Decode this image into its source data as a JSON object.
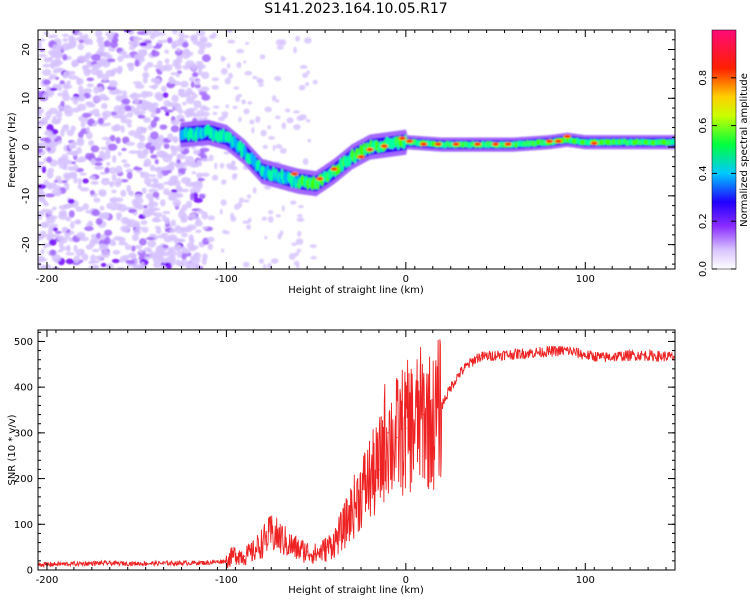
{
  "title": "S141.2023.164.10.05.R17",
  "chart_data": [
    {
      "type": "heatmap",
      "xlabel": "Height of straight line (km)",
      "ylabel": "Frequency (Hz)",
      "xlim": [
        -205,
        150
      ],
      "ylim": [
        -25,
        24
      ],
      "x_ticks": [
        -200,
        -100,
        0,
        100
      ],
      "y_ticks": [
        -20,
        -10,
        0,
        10,
        20
      ],
      "colorbar": {
        "label": "Normalized spectral amplitude",
        "range": [
          0,
          1
        ],
        "ticks": [
          "0.0",
          "0.2",
          "0.4",
          "0.6",
          "0.8"
        ],
        "colors": [
          "#ffffff",
          "#b07cff",
          "#6a00ff",
          "#0000ff",
          "#00ffff",
          "#00ff00",
          "#ffff00",
          "#ff0000",
          "#ff0088"
        ]
      },
      "ridge": {
        "x": [
          -125,
          -110,
          -100,
          -90,
          -80,
          -70,
          -60,
          -50,
          -40,
          -30,
          -20,
          -10,
          0,
          20,
          60,
          80,
          90,
          100,
          150
        ],
        "freq_hz": [
          2.5,
          3,
          2,
          -1,
          -5,
          -6,
          -7,
          -7.5,
          -5,
          -2,
          0,
          0.5,
          1,
          0.5,
          0.5,
          1,
          1.5,
          1,
          1
        ]
      }
    },
    {
      "type": "line",
      "xlabel": "Height of straight line (km)",
      "ylabel": "SNR (10 * v/v)",
      "xlim": [
        -205,
        150
      ],
      "ylim": [
        0,
        525
      ],
      "x_ticks": [
        -200,
        -100,
        0,
        100
      ],
      "y_ticks": [
        0,
        100,
        200,
        300,
        400,
        500
      ],
      "line_color": "#ee2222",
      "series": [
        {
          "x": [
            -205,
            -190,
            -170,
            -150,
            -130,
            -110,
            -100,
            -95,
            -90,
            -85,
            -80,
            -75,
            -70,
            -65,
            -60,
            -55,
            -50,
            -45,
            -40,
            -35,
            -30,
            -25,
            -20,
            -15,
            -12,
            -10,
            -8,
            -5,
            0,
            5,
            10,
            15,
            20,
            25,
            30,
            35,
            40,
            50,
            60,
            70,
            80,
            90,
            100,
            110,
            120,
            130,
            140,
            150
          ],
          "y": [
            12,
            13,
            15,
            14,
            15,
            16,
            20,
            35,
            30,
            40,
            60,
            80,
            70,
            55,
            45,
            40,
            35,
            45,
            60,
            90,
            130,
            170,
            200,
            220,
            280,
            300,
            280,
            290,
            310,
            320,
            340,
            320,
            360,
            400,
            430,
            450,
            465,
            470,
            472,
            475,
            478,
            480,
            470,
            465,
            468,
            470,
            468,
            466
          ]
        }
      ]
    }
  ]
}
